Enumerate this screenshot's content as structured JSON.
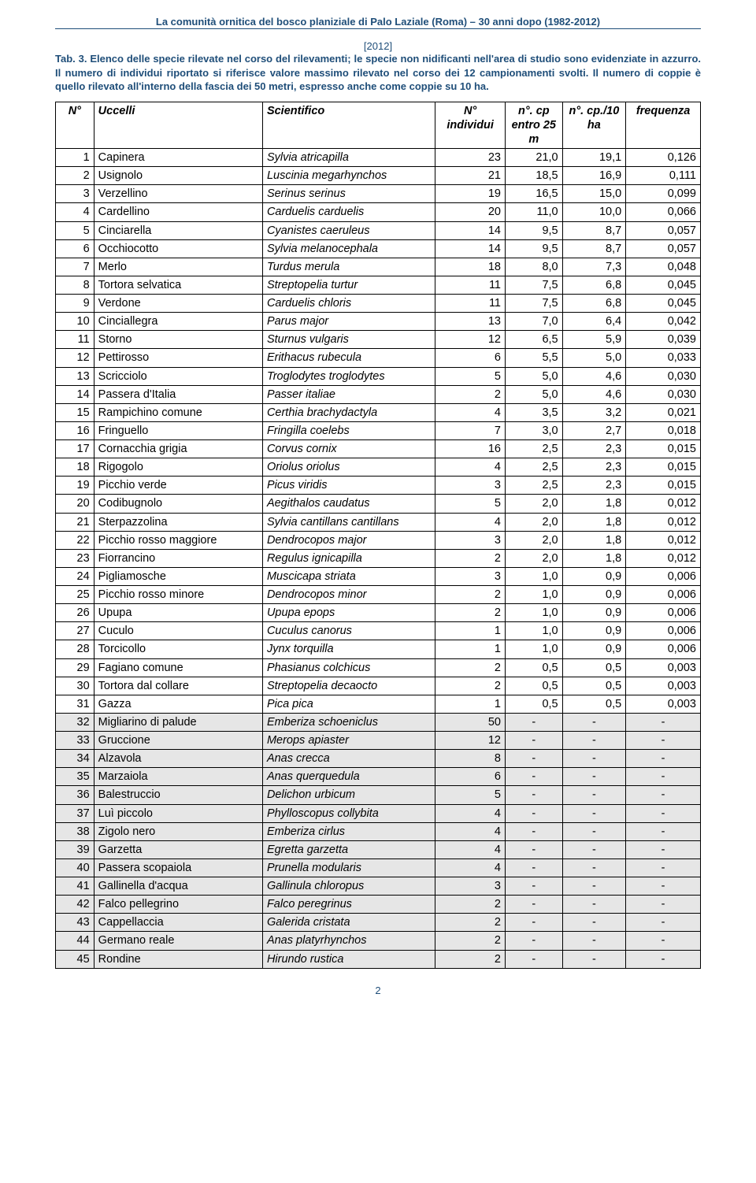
{
  "header": {
    "title": "La comunità ornitica del bosco planiziale di Palo Laziale (Roma) – 30 anni dopo (1982-2012)",
    "year": "[2012]"
  },
  "caption": "Tab. 3. Elenco delle specie rilevate nel corso del rilevamenti; le specie non nidificanti nell'area di studio sono evidenziate in azzurro. Il numero di individui riportato si riferisce valore massimo rilevato nel corso dei 12 campionamenti svolti. Il numero di coppie è quello rilevato all'interno della fascia dei 50 metri, espresso anche come coppie su 10 ha.",
  "table": {
    "columns": [
      "N°",
      "Uccelli",
      "Scientifico",
      "N° individui",
      "n°. cp entro 25 m",
      "n°. cp./10 ha",
      "frequenza"
    ],
    "rows": [
      {
        "n": "1",
        "uccelli": "Capinera",
        "sci": "Sylvia atricapilla",
        "ind": "23",
        "cp": "21,0",
        "ha": "19,1",
        "freq": "0,126",
        "shaded": false
      },
      {
        "n": "2",
        "uccelli": "Usignolo",
        "sci": "Luscinia megarhynchos",
        "ind": "21",
        "cp": "18,5",
        "ha": "16,9",
        "freq": "0,111",
        "shaded": false
      },
      {
        "n": "3",
        "uccelli": "Verzellino",
        "sci": "Serinus serinus",
        "ind": "19",
        "cp": "16,5",
        "ha": "15,0",
        "freq": "0,099",
        "shaded": false
      },
      {
        "n": "4",
        "uccelli": "Cardellino",
        "sci": "Carduelis carduelis",
        "ind": "20",
        "cp": "11,0",
        "ha": "10,0",
        "freq": "0,066",
        "shaded": false
      },
      {
        "n": "5",
        "uccelli": "Cinciarella",
        "sci": "Cyanistes caeruleus",
        "ind": "14",
        "cp": "9,5",
        "ha": "8,7",
        "freq": "0,057",
        "shaded": false
      },
      {
        "n": "6",
        "uccelli": "Occhiocotto",
        "sci": "Sylvia melanocephala",
        "ind": "14",
        "cp": "9,5",
        "ha": "8,7",
        "freq": "0,057",
        "shaded": false
      },
      {
        "n": "7",
        "uccelli": "Merlo",
        "sci": "Turdus merula",
        "ind": "18",
        "cp": "8,0",
        "ha": "7,3",
        "freq": "0,048",
        "shaded": false
      },
      {
        "n": "8",
        "uccelli": "Tortora selvatica",
        "sci": "Streptopelia turtur",
        "ind": "11",
        "cp": "7,5",
        "ha": "6,8",
        "freq": "0,045",
        "shaded": false
      },
      {
        "n": "9",
        "uccelli": "Verdone",
        "sci": "Carduelis chloris",
        "ind": "11",
        "cp": "7,5",
        "ha": "6,8",
        "freq": "0,045",
        "shaded": false
      },
      {
        "n": "10",
        "uccelli": "Cinciallegra",
        "sci": "Parus major",
        "ind": "13",
        "cp": "7,0",
        "ha": "6,4",
        "freq": "0,042",
        "shaded": false
      },
      {
        "n": "11",
        "uccelli": "Storno",
        "sci": "Sturnus vulgaris",
        "ind": "12",
        "cp": "6,5",
        "ha": "5,9",
        "freq": "0,039",
        "shaded": false
      },
      {
        "n": "12",
        "uccelli": "Pettirosso",
        "sci": "Erithacus rubecula",
        "ind": "6",
        "cp": "5,5",
        "ha": "5,0",
        "freq": "0,033",
        "shaded": false
      },
      {
        "n": "13",
        "uccelli": "Scricciolo",
        "sci": "Troglodytes troglodytes",
        "ind": "5",
        "cp": "5,0",
        "ha": "4,6",
        "freq": "0,030",
        "shaded": false
      },
      {
        "n": "14",
        "uccelli": "Passera d'Italia",
        "sci": "Passer italiae",
        "ind": "2",
        "cp": "5,0",
        "ha": "4,6",
        "freq": "0,030",
        "shaded": false
      },
      {
        "n": "15",
        "uccelli": "Rampichino comune",
        "sci": "Certhia brachydactyla",
        "ind": "4",
        "cp": "3,5",
        "ha": "3,2",
        "freq": "0,021",
        "shaded": false
      },
      {
        "n": "16",
        "uccelli": "Fringuello",
        "sci": "Fringilla coelebs",
        "ind": "7",
        "cp": "3,0",
        "ha": "2,7",
        "freq": "0,018",
        "shaded": false
      },
      {
        "n": "17",
        "uccelli": "Cornacchia grigia",
        "sci": "Corvus cornix",
        "ind": "16",
        "cp": "2,5",
        "ha": "2,3",
        "freq": "0,015",
        "shaded": false
      },
      {
        "n": "18",
        "uccelli": "Rigogolo",
        "sci": "Oriolus oriolus",
        "ind": "4",
        "cp": "2,5",
        "ha": "2,3",
        "freq": "0,015",
        "shaded": false
      },
      {
        "n": "19",
        "uccelli": "Picchio verde",
        "sci": "Picus viridis",
        "ind": "3",
        "cp": "2,5",
        "ha": "2,3",
        "freq": "0,015",
        "shaded": false
      },
      {
        "n": "20",
        "uccelli": "Codibugnolo",
        "sci": "Aegithalos caudatus",
        "ind": "5",
        "cp": "2,0",
        "ha": "1,8",
        "freq": "0,012",
        "shaded": false
      },
      {
        "n": "21",
        "uccelli": "Sterpazzolina",
        "sci": "Sylvia cantillans cantillans",
        "ind": "4",
        "cp": "2,0",
        "ha": "1,8",
        "freq": "0,012",
        "shaded": false
      },
      {
        "n": "22",
        "uccelli": "Picchio rosso maggiore",
        "sci": "Dendrocopos major",
        "ind": "3",
        "cp": "2,0",
        "ha": "1,8",
        "freq": "0,012",
        "shaded": false
      },
      {
        "n": "23",
        "uccelli": "Fiorrancino",
        "sci": "Regulus ignicapilla",
        "ind": "2",
        "cp": "2,0",
        "ha": "1,8",
        "freq": "0,012",
        "shaded": false
      },
      {
        "n": "24",
        "uccelli": "Pigliamosche",
        "sci": "Muscicapa striata",
        "ind": "3",
        "cp": "1,0",
        "ha": "0,9",
        "freq": "0,006",
        "shaded": false
      },
      {
        "n": "25",
        "uccelli": "Picchio rosso minore",
        "sci": "Dendrocopos minor",
        "ind": "2",
        "cp": "1,0",
        "ha": "0,9",
        "freq": "0,006",
        "shaded": false
      },
      {
        "n": "26",
        "uccelli": "Upupa",
        "sci": "Upupa epops",
        "ind": "2",
        "cp": "1,0",
        "ha": "0,9",
        "freq": "0,006",
        "shaded": false
      },
      {
        "n": "27",
        "uccelli": "Cuculo",
        "sci": "Cuculus canorus",
        "ind": "1",
        "cp": "1,0",
        "ha": "0,9",
        "freq": "0,006",
        "shaded": false
      },
      {
        "n": "28",
        "uccelli": "Torcicollo",
        "sci": "Jynx torquilla",
        "ind": "1",
        "cp": "1,0",
        "ha": "0,9",
        "freq": "0,006",
        "shaded": false
      },
      {
        "n": "29",
        "uccelli": "Fagiano comune",
        "sci": "Phasianus colchicus",
        "ind": "2",
        "cp": "0,5",
        "ha": "0,5",
        "freq": "0,003",
        "shaded": false
      },
      {
        "n": "30",
        "uccelli": "Tortora dal collare",
        "sci": "Streptopelia decaocto",
        "ind": "2",
        "cp": "0,5",
        "ha": "0,5",
        "freq": "0,003",
        "shaded": false
      },
      {
        "n": "31",
        "uccelli": "Gazza",
        "sci": "Pica pica",
        "ind": "1",
        "cp": "0,5",
        "ha": "0,5",
        "freq": "0,003",
        "shaded": false
      },
      {
        "n": "32",
        "uccelli": "Migliarino di palude",
        "sci": "Emberiza schoeniclus",
        "ind": "50",
        "cp": "-",
        "ha": "-",
        "freq": "-",
        "shaded": true
      },
      {
        "n": "33",
        "uccelli": "Gruccione",
        "sci": "Merops apiaster",
        "ind": "12",
        "cp": "-",
        "ha": "-",
        "freq": "-",
        "shaded": true
      },
      {
        "n": "34",
        "uccelli": "Alzavola",
        "sci": "Anas crecca",
        "ind": "8",
        "cp": "-",
        "ha": "-",
        "freq": "-",
        "shaded": true
      },
      {
        "n": "35",
        "uccelli": "Marzaiola",
        "sci": "Anas querquedula",
        "ind": "6",
        "cp": "-",
        "ha": "-",
        "freq": "-",
        "shaded": true
      },
      {
        "n": "36",
        "uccelli": "Balestruccio",
        "sci": "Delichon urbicum",
        "ind": "5",
        "cp": "-",
        "ha": "-",
        "freq": "-",
        "shaded": true
      },
      {
        "n": "37",
        "uccelli": "Luì piccolo",
        "sci": "Phylloscopus collybita",
        "ind": "4",
        "cp": "-",
        "ha": "-",
        "freq": "-",
        "shaded": true
      },
      {
        "n": "38",
        "uccelli": "Zigolo nero",
        "sci": "Emberiza cirlus",
        "ind": "4",
        "cp": "-",
        "ha": "-",
        "freq": "-",
        "shaded": true
      },
      {
        "n": "39",
        "uccelli": "Garzetta",
        "sci": "Egretta garzetta",
        "ind": "4",
        "cp": "-",
        "ha": "-",
        "freq": "-",
        "shaded": true
      },
      {
        "n": "40",
        "uccelli": "Passera scopaiola",
        "sci": "Prunella modularis",
        "ind": "4",
        "cp": "-",
        "ha": "-",
        "freq": "-",
        "shaded": true
      },
      {
        "n": "41",
        "uccelli": "Gallinella d'acqua",
        "sci": "Gallinula chloropus",
        "ind": "3",
        "cp": "-",
        "ha": "-",
        "freq": "-",
        "shaded": true
      },
      {
        "n": "42",
        "uccelli": "Falco pellegrino",
        "sci": "Falco peregrinus",
        "ind": "2",
        "cp": "-",
        "ha": "-",
        "freq": "-",
        "shaded": true
      },
      {
        "n": "43",
        "uccelli": "Cappellaccia",
        "sci": "Galerida cristata",
        "ind": "2",
        "cp": "-",
        "ha": "-",
        "freq": "-",
        "shaded": true
      },
      {
        "n": "44",
        "uccelli": "Germano reale",
        "sci": "Anas platyrhynchos",
        "ind": "2",
        "cp": "-",
        "ha": "-",
        "freq": "-",
        "shaded": true
      },
      {
        "n": "45",
        "uccelli": "Rondine",
        "sci": "Hirundo rustica",
        "ind": "2",
        "cp": "-",
        "ha": "-",
        "freq": "-",
        "shaded": true
      }
    ]
  },
  "page_number": "2"
}
